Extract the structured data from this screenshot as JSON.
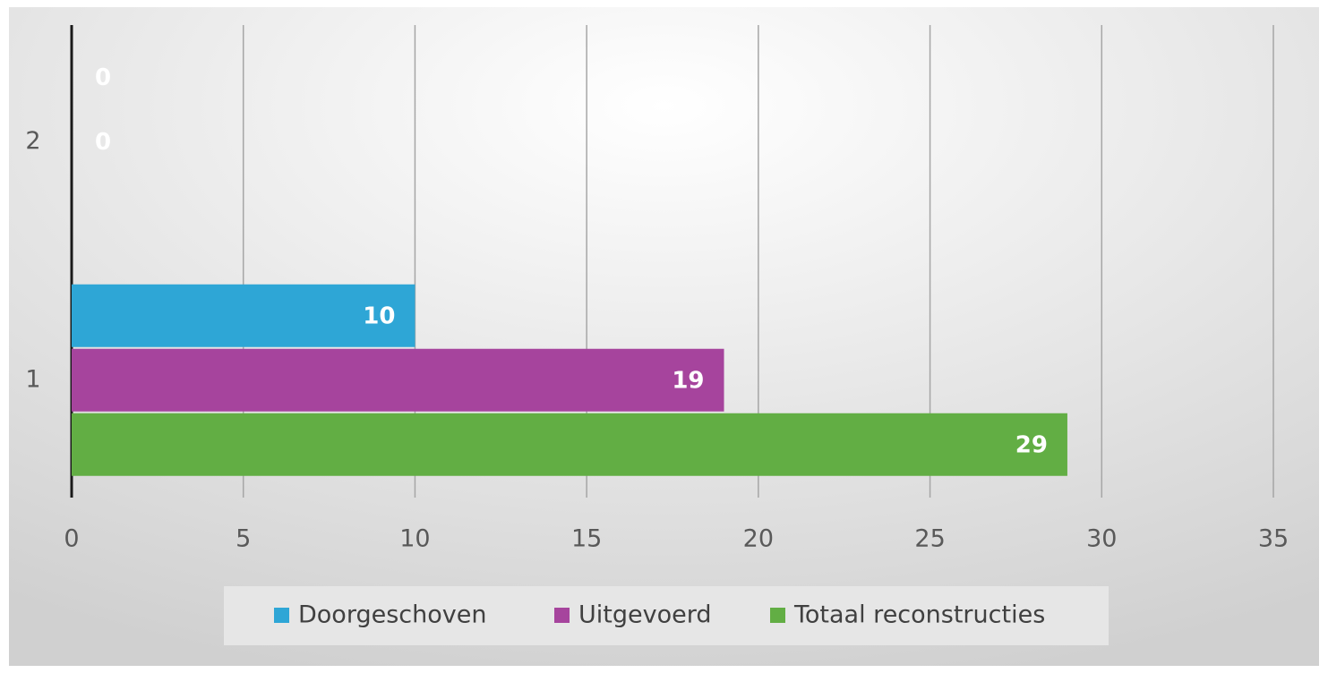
{
  "chart_data": {
    "type": "hbar",
    "categories": [
      "1",
      "2"
    ],
    "series": [
      {
        "name": "Doorgeschoven",
        "color": "#2ea6d6",
        "values": [
          10,
          0
        ]
      },
      {
        "name": "Uitgevoerd",
        "color": "#a6449d",
        "values": [
          19,
          0
        ]
      },
      {
        "name": "Totaal reconstructies",
        "color": "#62ae44",
        "values": [
          29,
          null
        ]
      }
    ],
    "xlim": [
      0,
      35
    ],
    "xticks": [
      0,
      5,
      10,
      15,
      20,
      25,
      30,
      35
    ],
    "grid": true,
    "legend": "bottom"
  }
}
